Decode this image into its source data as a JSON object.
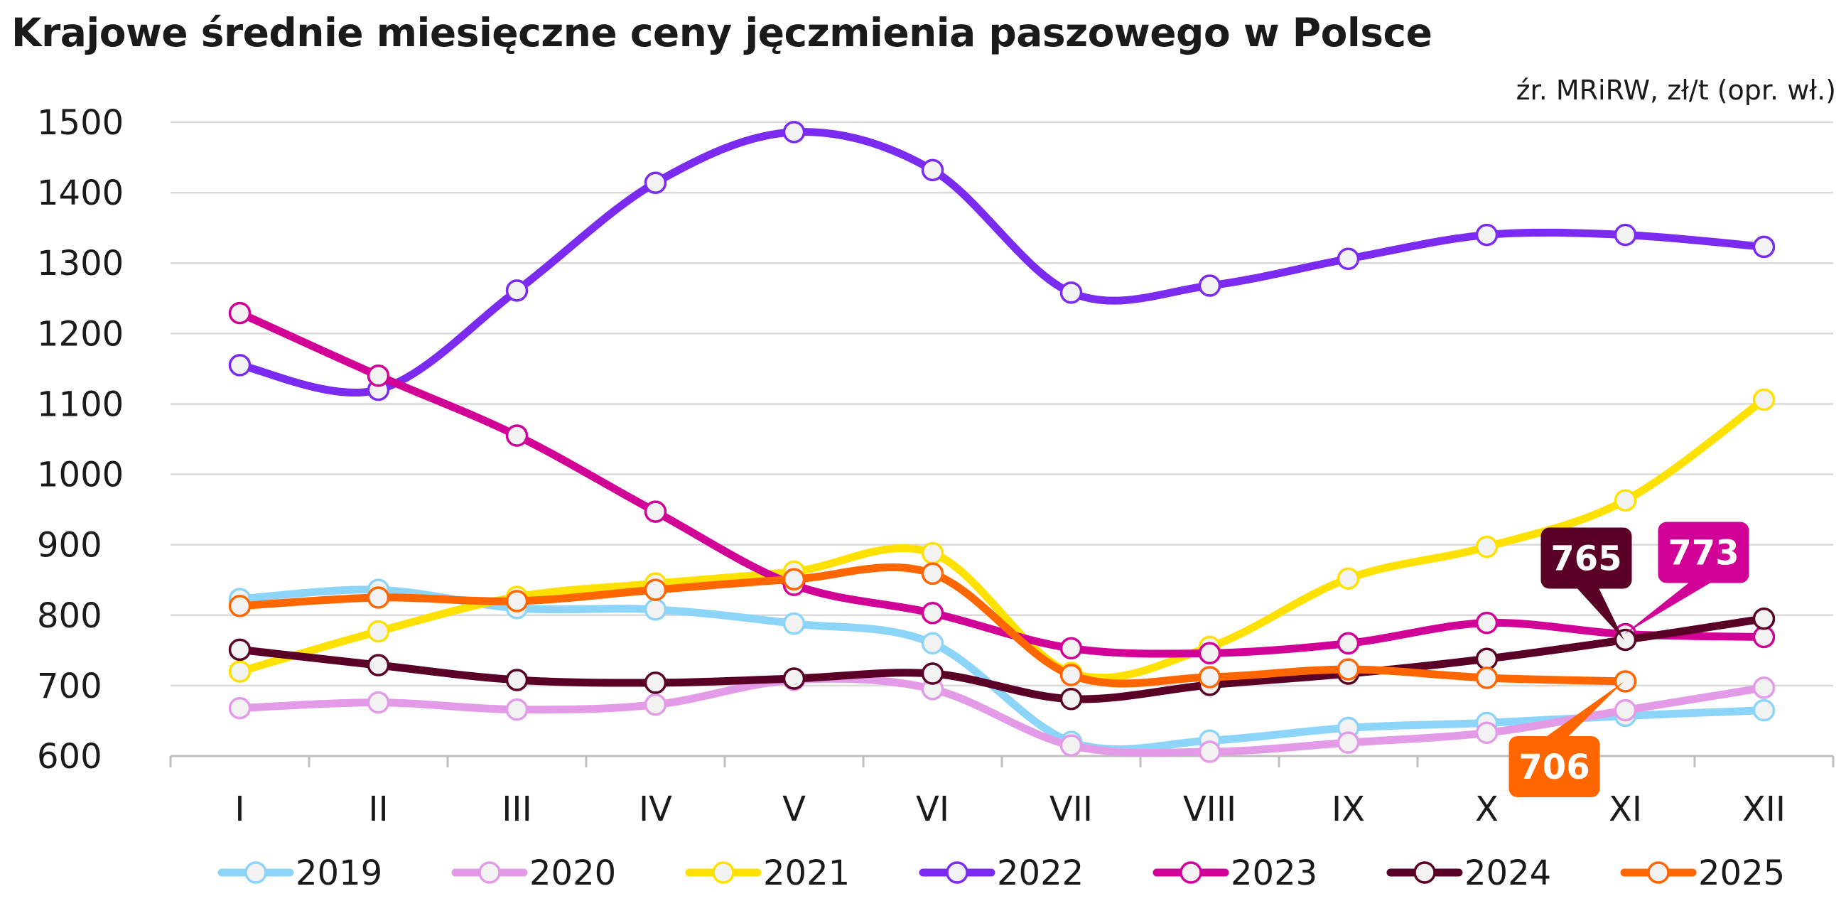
{
  "chart_data": {
    "type": "line",
    "title": "Krajowe średnie miesięczne ceny jęczmienia paszowego w Polsce",
    "subtitle": "źr. MRiRW, zł/t (opr. wł.)",
    "categories": [
      "I",
      "II",
      "III",
      "IV",
      "V",
      "VI",
      "VII",
      "VIII",
      "IX",
      "X",
      "XI",
      "XII"
    ],
    "ylim": [
      600,
      1500
    ],
    "y_ticks": [
      "600",
      "700",
      "800",
      "900",
      "1000",
      "1100",
      "1200",
      "1300",
      "1400",
      "1500"
    ],
    "grid": "horizontal",
    "legend_position": "bottom",
    "series": [
      {
        "name": "2019",
        "color": "#8cd4f8",
        "values": [
          823,
          836,
          810,
          808,
          788,
          760,
          620,
          622,
          640,
          647,
          657,
          665
        ]
      },
      {
        "name": "2020",
        "color": "#e39be8",
        "values": [
          668,
          676,
          666,
          673,
          708,
          695,
          615,
          606,
          619,
          633,
          665,
          697
        ]
      },
      {
        "name": "2021",
        "color": "#ffe100",
        "values": [
          720,
          777,
          826,
          845,
          862,
          888,
          718,
          755,
          852,
          897,
          963,
          1106
        ]
      },
      {
        "name": "2022",
        "color": "#7b2bf0",
        "values": [
          1155,
          1120,
          1261,
          1414,
          1486,
          1432,
          1258,
          1268,
          1306,
          1340,
          1340,
          1323
        ]
      },
      {
        "name": "2023",
        "color": "#d10096",
        "values": [
          1229,
          1140,
          1055,
          947,
          843,
          803,
          753,
          746,
          760,
          789,
          773,
          769
        ]
      },
      {
        "name": "2024",
        "color": "#5a0026",
        "values": [
          751,
          729,
          708,
          704,
          710,
          717,
          681,
          701,
          717,
          738,
          765,
          795
        ]
      },
      {
        "name": "2025",
        "color": "#ff6600",
        "values": [
          813,
          825,
          820,
          836,
          851,
          859,
          715,
          712,
          723,
          711,
          706,
          null
        ]
      }
    ],
    "annotations": [
      {
        "text": "765",
        "series": "2024",
        "point": "XI",
        "color": "#5a0026"
      },
      {
        "text": "773",
        "series": "2023",
        "point": "XI",
        "color": "#d10096"
      },
      {
        "text": "706",
        "series": "2025",
        "point": "XI",
        "color": "#ff6600"
      }
    ]
  }
}
